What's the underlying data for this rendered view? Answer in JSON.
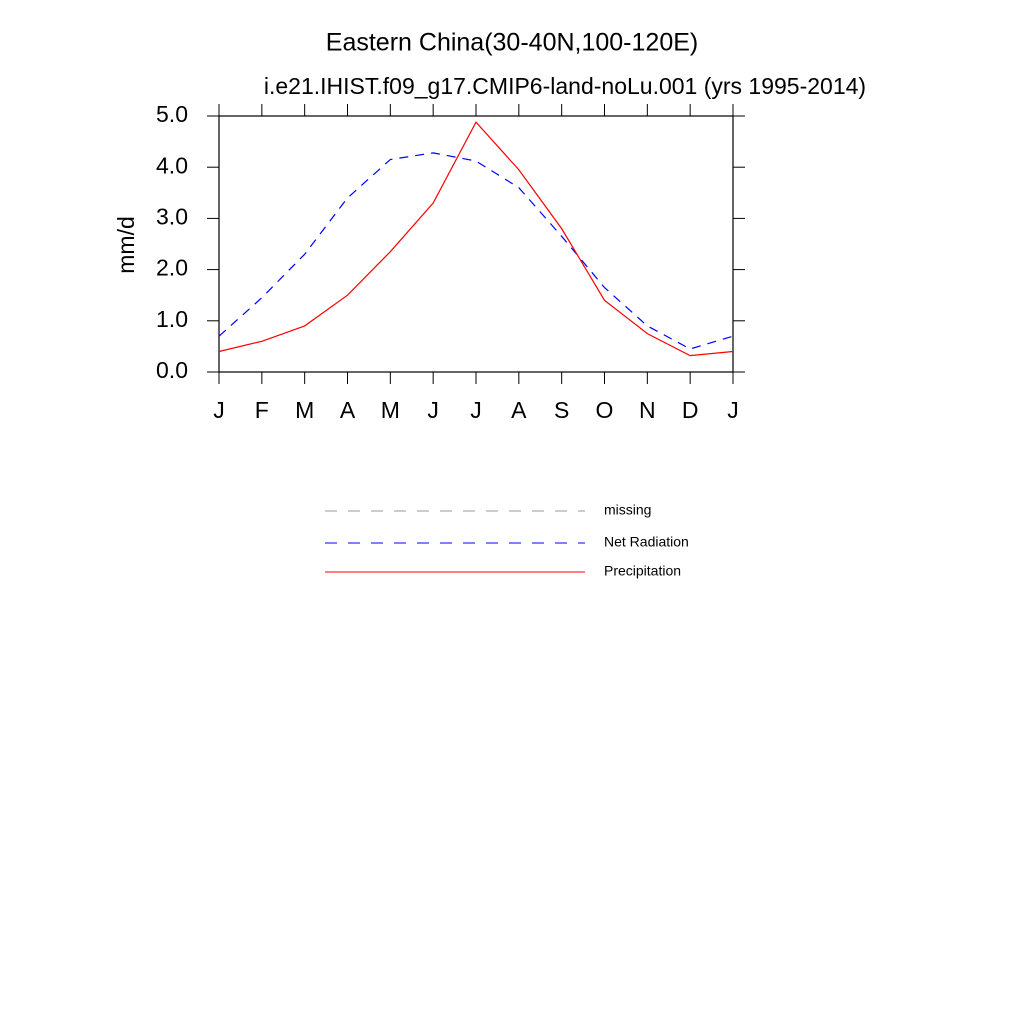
{
  "chart_data": {
    "type": "line",
    "title": "Eastern China(30-40N,100-120E)",
    "subtitle": "i.e21.IHIST.f09_g17.CMIP6-land-noLu.001 (yrs 1995-2014)",
    "y_label": "mm/d",
    "categories": [
      "J",
      "F",
      "M",
      "A",
      "M",
      "J",
      "J",
      "A",
      "S",
      "O",
      "N",
      "D",
      "J"
    ],
    "ylim": [
      0,
      5
    ],
    "yticks": [
      {
        "value": 0,
        "label": "0.0"
      },
      {
        "value": 1,
        "label": "1.0"
      },
      {
        "value": 2,
        "label": "2.0"
      },
      {
        "value": 3,
        "label": "3.0"
      },
      {
        "value": 4,
        "label": "4.0"
      },
      {
        "value": 5,
        "label": "5.0"
      }
    ],
    "series": [
      {
        "name": "missing",
        "color": "#999999",
        "dash": true,
        "values": [
          null,
          null,
          null,
          null,
          null,
          null,
          null,
          null,
          null,
          null,
          null,
          null,
          null
        ]
      },
      {
        "name": "Net Radiation",
        "color": "#0000ff",
        "dash": true,
        "values": [
          0.7,
          1.45,
          2.3,
          3.4,
          4.15,
          4.28,
          4.12,
          3.6,
          2.65,
          1.65,
          0.9,
          0.45,
          0.7
        ]
      },
      {
        "name": "Precipitation",
        "color": "#ff0000",
        "dash": false,
        "values": [
          0.4,
          0.6,
          0.9,
          1.5,
          2.35,
          3.3,
          4.88,
          3.95,
          2.8,
          1.4,
          0.75,
          0.32,
          0.4
        ]
      }
    ]
  }
}
